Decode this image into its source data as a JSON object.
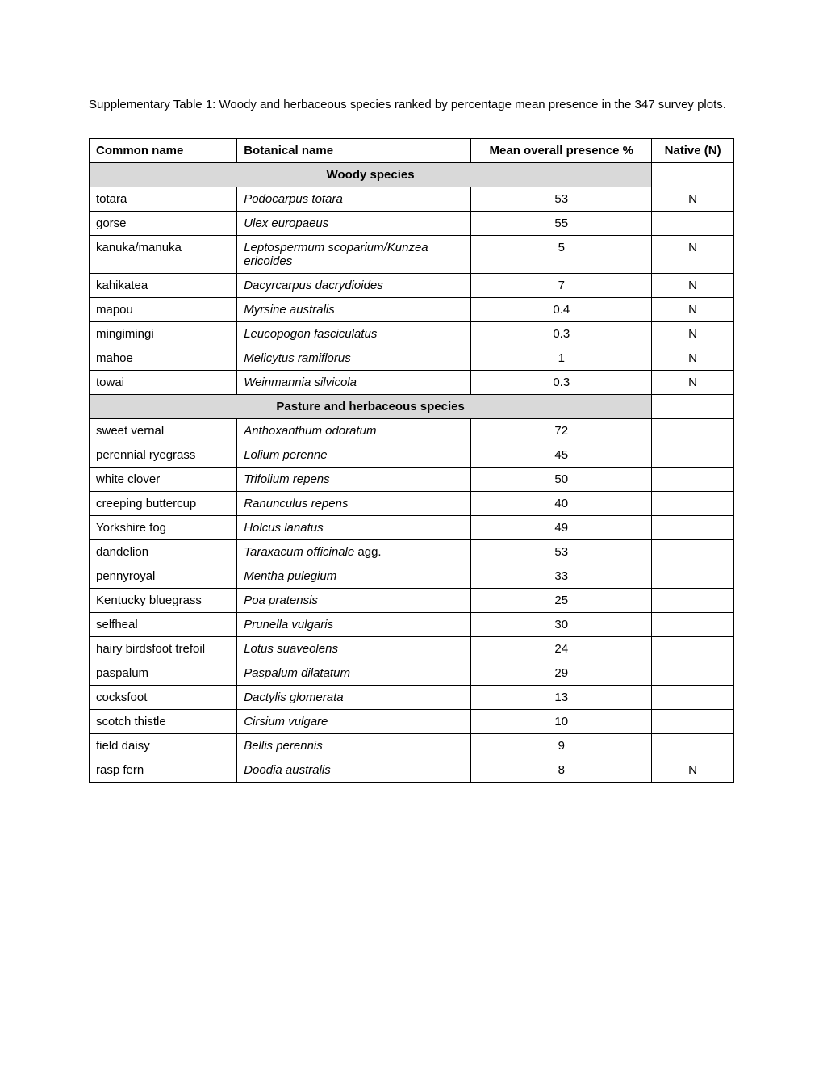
{
  "caption": "Supplementary Table 1: Woody and herbaceous species ranked by percentage mean presence in the 347 survey plots.",
  "headers": {
    "common": "Common name",
    "botanical": "Botanical name",
    "mean": "Mean overall presence %",
    "native": "Native (N)"
  },
  "section1": "Woody species",
  "section2": "Pasture and herbaceous species",
  "woody": [
    {
      "common": "totara",
      "botanical": "Podocarpus totara",
      "mean": "53",
      "native": "N"
    },
    {
      "common": "gorse",
      "botanical": "Ulex europaeus",
      "mean": "55",
      "native": ""
    },
    {
      "common": "kanuka/manuka",
      "botanical": "Leptospermum scoparium/Kunzea ericoides",
      "mean": "5",
      "native": "N"
    },
    {
      "common": "kahikatea",
      "botanical": "Dacyrcarpus dacrydioides",
      "mean": "7",
      "native": "N"
    },
    {
      "common": "mapou",
      "botanical": "Myrsine australis",
      "mean": "0.4",
      "native": "N"
    },
    {
      "common": "mingimingi",
      "botanical": "Leucopogon fasciculatus",
      "mean": "0.3",
      "native": "N"
    },
    {
      "common": "mahoe",
      "botanical": "Melicytus ramiflorus",
      "mean": "1",
      "native": "N"
    },
    {
      "common": "towai",
      "botanical": "Weinmannia silvicola",
      "mean": "0.3",
      "native": "N"
    }
  ],
  "pasture": [
    {
      "common": "sweet vernal",
      "botanical": "Anthoxanthum odoratum",
      "mean": "72",
      "native": ""
    },
    {
      "common": "perennial ryegrass",
      "botanical": "Lolium perenne",
      "mean": "45",
      "native": ""
    },
    {
      "common": "white clover",
      "botanical": "Trifolium repens",
      "mean": "50",
      "native": ""
    },
    {
      "common": "creeping buttercup",
      "botanical": "Ranunculus repens",
      "mean": "40",
      "native": ""
    },
    {
      "common": "Yorkshire fog",
      "botanical": "Holcus lanatus",
      "mean": "49",
      "native": ""
    },
    {
      "common": "dandelion",
      "botanical_html": "<span class=\"botanical\">Taraxacum officinale</span> agg.",
      "mean": "53",
      "native": ""
    },
    {
      "common": "pennyroyal",
      "botanical": "Mentha pulegium",
      "mean": "33",
      "native": ""
    },
    {
      "common": "Kentucky bluegrass",
      "botanical": "Poa pratensis",
      "mean": "25",
      "native": ""
    },
    {
      "common": "selfheal",
      "botanical": "Prunella vulgaris",
      "mean": "30",
      "native": ""
    },
    {
      "common": "hairy birdsfoot trefoil",
      "botanical": "Lotus suaveolens",
      "mean": "24",
      "native": ""
    },
    {
      "common": "paspalum",
      "botanical": "Paspalum dilatatum",
      "mean": "29",
      "native": ""
    },
    {
      "common": "cocksfoot",
      "botanical": "Dactylis glomerata",
      "mean": "13",
      "native": ""
    },
    {
      "common": "scotch thistle",
      "botanical": "Cirsium vulgare",
      "mean": "10",
      "native": ""
    },
    {
      "common": "field daisy",
      "botanical": "Bellis perennis",
      "mean": "9",
      "native": ""
    },
    {
      "common": "rasp fern",
      "botanical": "Doodia australis",
      "mean": "8",
      "native": "N"
    }
  ]
}
